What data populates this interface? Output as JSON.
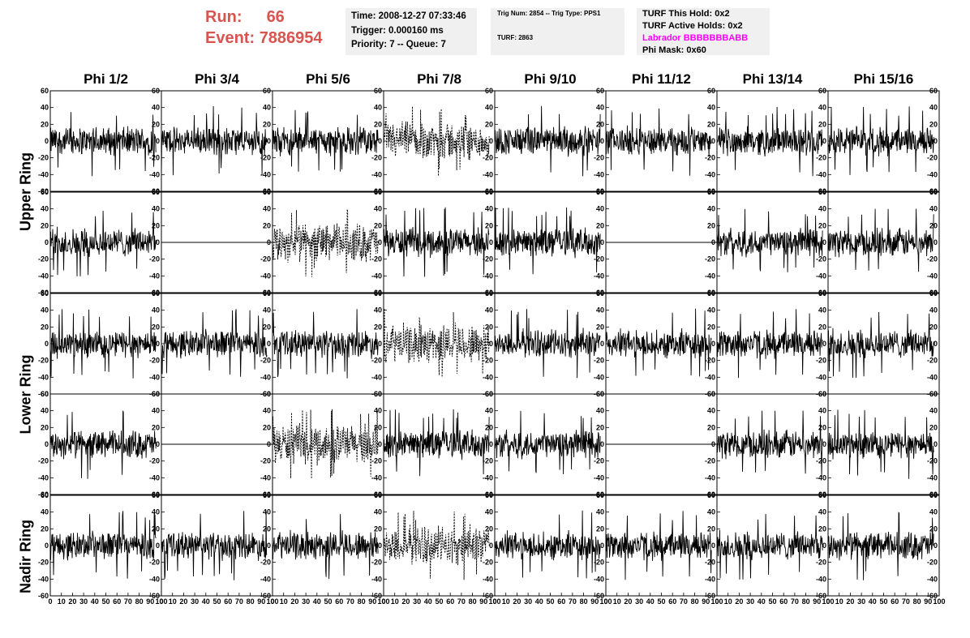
{
  "header": {
    "run_label": "Run:",
    "run_value": "66",
    "event_label": "Event:",
    "event_value": "7886954",
    "run_color": "#d9534f"
  },
  "time_box": {
    "time": "Time: 2008-12-27 07:33:46",
    "trigger": "Trigger: 0.000160 ms",
    "priority": "Priority: 7 -- Queue: 7"
  },
  "trig_box": {
    "trig_line": "Trig Num: 2854 -- Trig Type: PPS1",
    "turf_line": "TURF: 2863"
  },
  "turf_box": {
    "this_hold": "TURF This Hold: 0x2",
    "active_holds": "TURF Active Holds: 0x2",
    "labrador": "Labrador BBBBBBBABB",
    "labrador_color": "#ff00ff",
    "phi_mask": "Phi Mask: 0x60"
  },
  "columns": [
    "Phi 1/2",
    "Phi 3/4",
    "Phi 5/6",
    "Phi 7/8",
    "Phi 9/10",
    "Phi 11/12",
    "Phi 13/14",
    "Phi 15/16"
  ],
  "row_labels": {
    "upper": "Upper Ring",
    "lower": "Lower Ring",
    "nadir": "Nadir Ring"
  },
  "axes": {
    "y_ticks": [
      "60",
      "40",
      "20",
      "0",
      "-20",
      "-40",
      "-60"
    ],
    "x_ticks": [
      "0",
      "10",
      "20",
      "30",
      "40",
      "50",
      "60",
      "70",
      "80",
      "90",
      "100"
    ],
    "ylim": [
      -60,
      60
    ],
    "xlim": [
      0,
      100
    ]
  },
  "chart_data": {
    "type": "line",
    "rows": 5,
    "cols": 8,
    "flat_panels": [
      [
        1,
        1
      ],
      [
        3,
        1
      ],
      [
        1,
        5
      ],
      [
        3,
        5
      ]
    ],
    "dashed_panels": [
      [
        0,
        3
      ],
      [
        1,
        2
      ],
      [
        2,
        3
      ],
      [
        3,
        2
      ],
      [
        4,
        3
      ]
    ]
  }
}
